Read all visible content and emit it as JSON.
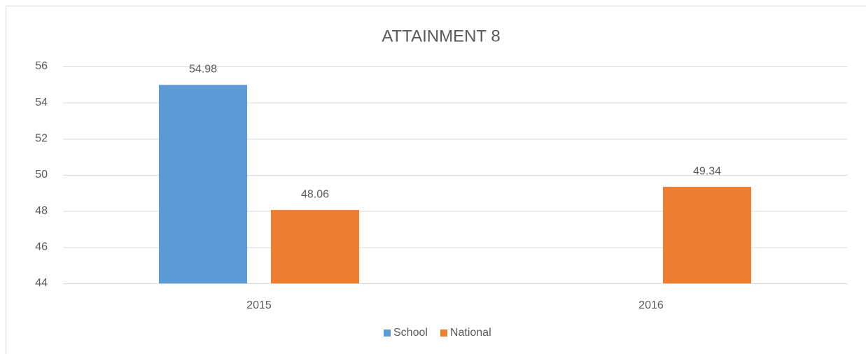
{
  "chart_data": {
    "type": "bar",
    "title": "ATTAINMENT 8",
    "categories": [
      "2015",
      "2016"
    ],
    "series": [
      {
        "name": "School",
        "color": "#5b9bd5",
        "values": [
          54.98,
          null
        ]
      },
      {
        "name": "National",
        "color": "#ed7d31",
        "values": [
          48.06,
          49.34
        ]
      }
    ],
    "ylim": [
      44,
      56
    ],
    "yticks": [
      44,
      46,
      48,
      50,
      52,
      54,
      56
    ],
    "grid": true,
    "legend": "bottom"
  }
}
